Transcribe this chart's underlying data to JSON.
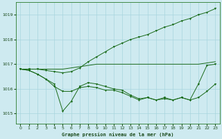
{
  "background_color": "#ceeaf0",
  "grid_color": "#a8d5de",
  "line_color": "#1a6b1a",
  "title": "Graphe pression niveau de la mer (hPa)",
  "xlim": [
    -0.5,
    23.5
  ],
  "ylim": [
    1014.6,
    1019.5
  ],
  "yticks": [
    1015,
    1016,
    1017,
    1018,
    1019
  ],
  "xticks": [
    0,
    1,
    2,
    3,
    4,
    5,
    6,
    7,
    8,
    9,
    10,
    11,
    12,
    13,
    14,
    15,
    16,
    17,
    18,
    19,
    20,
    21,
    22,
    23
  ],
  "series1_y": [
    1016.8,
    1016.8,
    1016.8,
    1016.8,
    1016.8,
    1016.8,
    1016.85,
    1016.9,
    1016.95,
    1017.0,
    1017.0,
    1017.0,
    1017.0,
    1017.0,
    1017.0,
    1017.0,
    1017.0,
    1017.0,
    1017.0,
    1017.0,
    1017.0,
    1017.0,
    1017.05,
    1017.1
  ],
  "series2_y": [
    1016.8,
    1016.8,
    1016.8,
    1016.75,
    1016.7,
    1016.65,
    1016.7,
    1016.85,
    1017.1,
    1017.3,
    1017.5,
    1017.7,
    1017.85,
    1018.0,
    1018.1,
    1018.2,
    1018.35,
    1018.5,
    1018.6,
    1018.75,
    1018.85,
    1019.0,
    1019.1,
    1019.25
  ],
  "series3_y": [
    1016.8,
    1016.75,
    1016.6,
    1016.4,
    1016.2,
    1015.1,
    1015.5,
    1016.1,
    1016.25,
    1016.2,
    1016.1,
    1016.0,
    1015.95,
    1015.75,
    1015.6,
    1015.65,
    1015.55,
    1015.6,
    1015.55,
    1015.65,
    1015.55,
    1016.2,
    1016.95,
    1017.0
  ],
  "series4_y": [
    1016.8,
    1016.75,
    1016.6,
    1016.4,
    1016.1,
    1015.9,
    1015.9,
    1016.05,
    1016.1,
    1016.05,
    1015.95,
    1015.95,
    1015.85,
    1015.7,
    1015.55,
    1015.65,
    1015.55,
    1015.65,
    1015.55,
    1015.65,
    1015.55,
    1015.65,
    1015.9,
    1016.2
  ]
}
